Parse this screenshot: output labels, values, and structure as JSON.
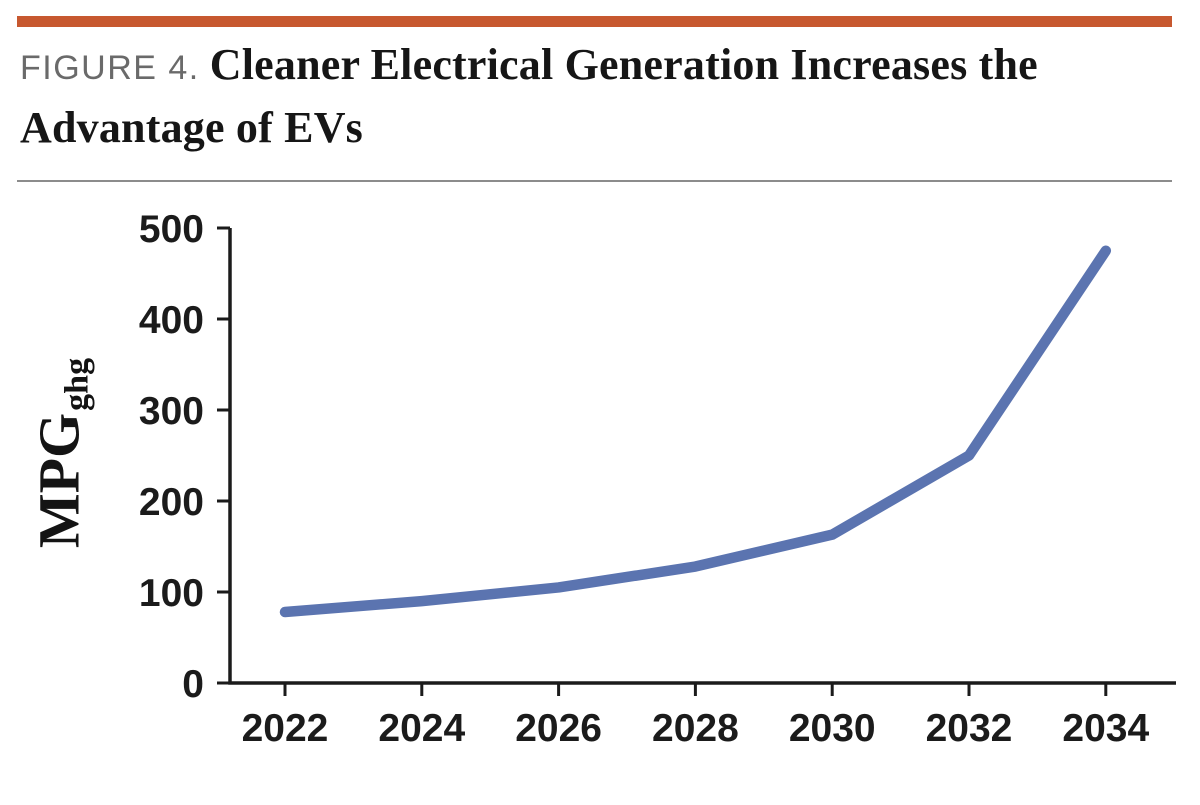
{
  "page": {
    "background": "#FFFFFF",
    "accent_bar_color": "#C7582F",
    "divider_color": "#8C8C8C"
  },
  "header": {
    "figure_label": "FIGURE 4.",
    "title": "Cleaner Electrical Generation Increases the Advantage of EVs",
    "title_lines": [
      "Cleaner Electrical Generation Increases the",
      "Advantage of EVs"
    ]
  },
  "chart_data": {
    "type": "line",
    "title": "Cleaner Electrical Generation Increases the Advantage of EVs",
    "x": [
      2022,
      2024,
      2026,
      2028,
      2030,
      2032,
      2034
    ],
    "xticks": [
      "2022",
      "2024",
      "2026",
      "2028",
      "2030",
      "2032",
      "2034"
    ],
    "series": [
      {
        "name": "MPGghg",
        "values": [
          78,
          90,
          105,
          128,
          163,
          250,
          475
        ]
      }
    ],
    "xlabel": "",
    "ylabel": "MPG",
    "ylabel_subscript": "ghg",
    "ylim": [
      0,
      500
    ],
    "yticks": [
      0,
      100,
      200,
      300,
      400,
      500
    ],
    "grid": false,
    "legend": "none",
    "line_color": "#5B74B0",
    "axis_color": "#1B1B1B"
  }
}
